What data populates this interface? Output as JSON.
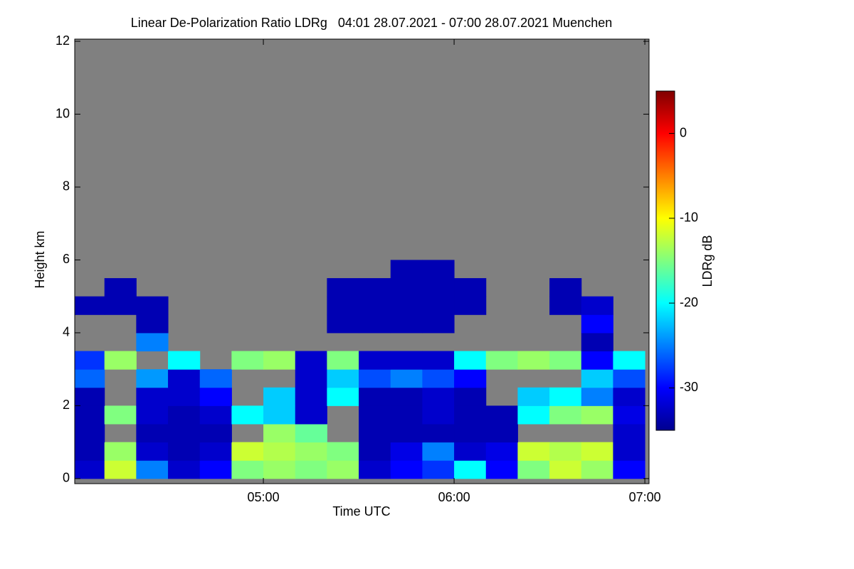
{
  "chart_data": {
    "type": "heatmap",
    "title": "Linear De-Polarization Ratio LDRg   04:01 28.07.2021 - 07:00 28.07.2021 Muenchen",
    "xlabel": "Time UTC",
    "ylabel": "Height km",
    "colorbar_label": "LDRg dB",
    "xlim": [
      4.011,
      7.022
    ],
    "xticks": [
      {
        "value": 5,
        "label": "05:00"
      },
      {
        "value": 6,
        "label": "06:00"
      },
      {
        "value": 7,
        "label": "07:00"
      }
    ],
    "ylim": [
      -0.14,
      12.06
    ],
    "yticks": [
      0,
      2,
      4,
      6,
      8,
      10,
      12
    ],
    "zlim": [
      -35,
      5
    ],
    "cticks": [
      0,
      -10,
      -20,
      -30
    ],
    "colormap": "jet",
    "missing_color": "#808080",
    "xbins": [
      4,
      4.1667,
      4.3333,
      4.5,
      4.6667,
      4.8333,
      5,
      5.1667,
      5.3333,
      5.5,
      5.6667,
      5.8333,
      6,
      6.1667,
      6.3333,
      6.5,
      6.6667,
      6.8333,
      7
    ],
    "ybins": [
      0,
      0.5,
      1,
      1.5,
      2,
      2.5,
      3,
      3.5,
      4,
      4.5,
      5,
      5.5,
      6
    ],
    "z": [
      [
        -32,
        -12,
        -25,
        -32,
        -30,
        -15,
        -14,
        -15,
        -14,
        -32,
        -30,
        -28,
        -20,
        -30,
        -15,
        -12,
        -14,
        -30
      ],
      [
        -33,
        -14,
        -32,
        -33,
        -32,
        -12,
        -13,
        -14,
        -15,
        -33,
        -31,
        -25,
        -32,
        -31,
        -12,
        -13,
        -12,
        -32
      ],
      [
        -33,
        null,
        -33,
        -33,
        -33,
        null,
        -14,
        -16,
        null,
        -33,
        -33,
        -33,
        -33,
        -33,
        null,
        null,
        null,
        -32
      ],
      [
        -33,
        -15,
        -32,
        -33,
        -32,
        -20,
        -22,
        -32,
        null,
        -33,
        -33,
        -32,
        -33,
        -33,
        -20,
        -15,
        -14,
        -31
      ],
      [
        -33,
        null,
        -32,
        -32,
        -30,
        null,
        -22,
        -32,
        -20,
        -33,
        -33,
        -32,
        -33,
        null,
        -22,
        -20,
        -25,
        -32
      ],
      [
        -26,
        null,
        -24,
        -32,
        -26,
        null,
        null,
        -32,
        -22,
        -27,
        -25,
        -27,
        -30,
        null,
        null,
        null,
        -22,
        -27
      ],
      [
        -28,
        -14,
        null,
        -20,
        null,
        -15,
        -14,
        -32,
        -15,
        -32,
        -32,
        -32,
        -20,
        -15,
        -14,
        -15,
        -30,
        -20
      ],
      [
        null,
        null,
        -25,
        null,
        null,
        null,
        null,
        null,
        null,
        null,
        null,
        null,
        null,
        null,
        null,
        null,
        -33,
        null
      ],
      [
        null,
        null,
        -33,
        null,
        null,
        null,
        null,
        null,
        -33,
        -33,
        -33,
        -33,
        null,
        null,
        null,
        null,
        -30,
        null
      ],
      [
        -33,
        -33,
        -33,
        null,
        null,
        null,
        null,
        null,
        -33,
        -33,
        -33,
        -33,
        -33,
        null,
        null,
        -33,
        -32,
        null
      ],
      [
        null,
        -33,
        null,
        null,
        null,
        null,
        null,
        null,
        -33,
        -33,
        -33,
        -33,
        -33,
        null,
        null,
        -33,
        null,
        null
      ],
      [
        null,
        null,
        null,
        null,
        null,
        null,
        null,
        null,
        null,
        null,
        -33,
        -33,
        null,
        null,
        null,
        null,
        null,
        null
      ]
    ]
  }
}
